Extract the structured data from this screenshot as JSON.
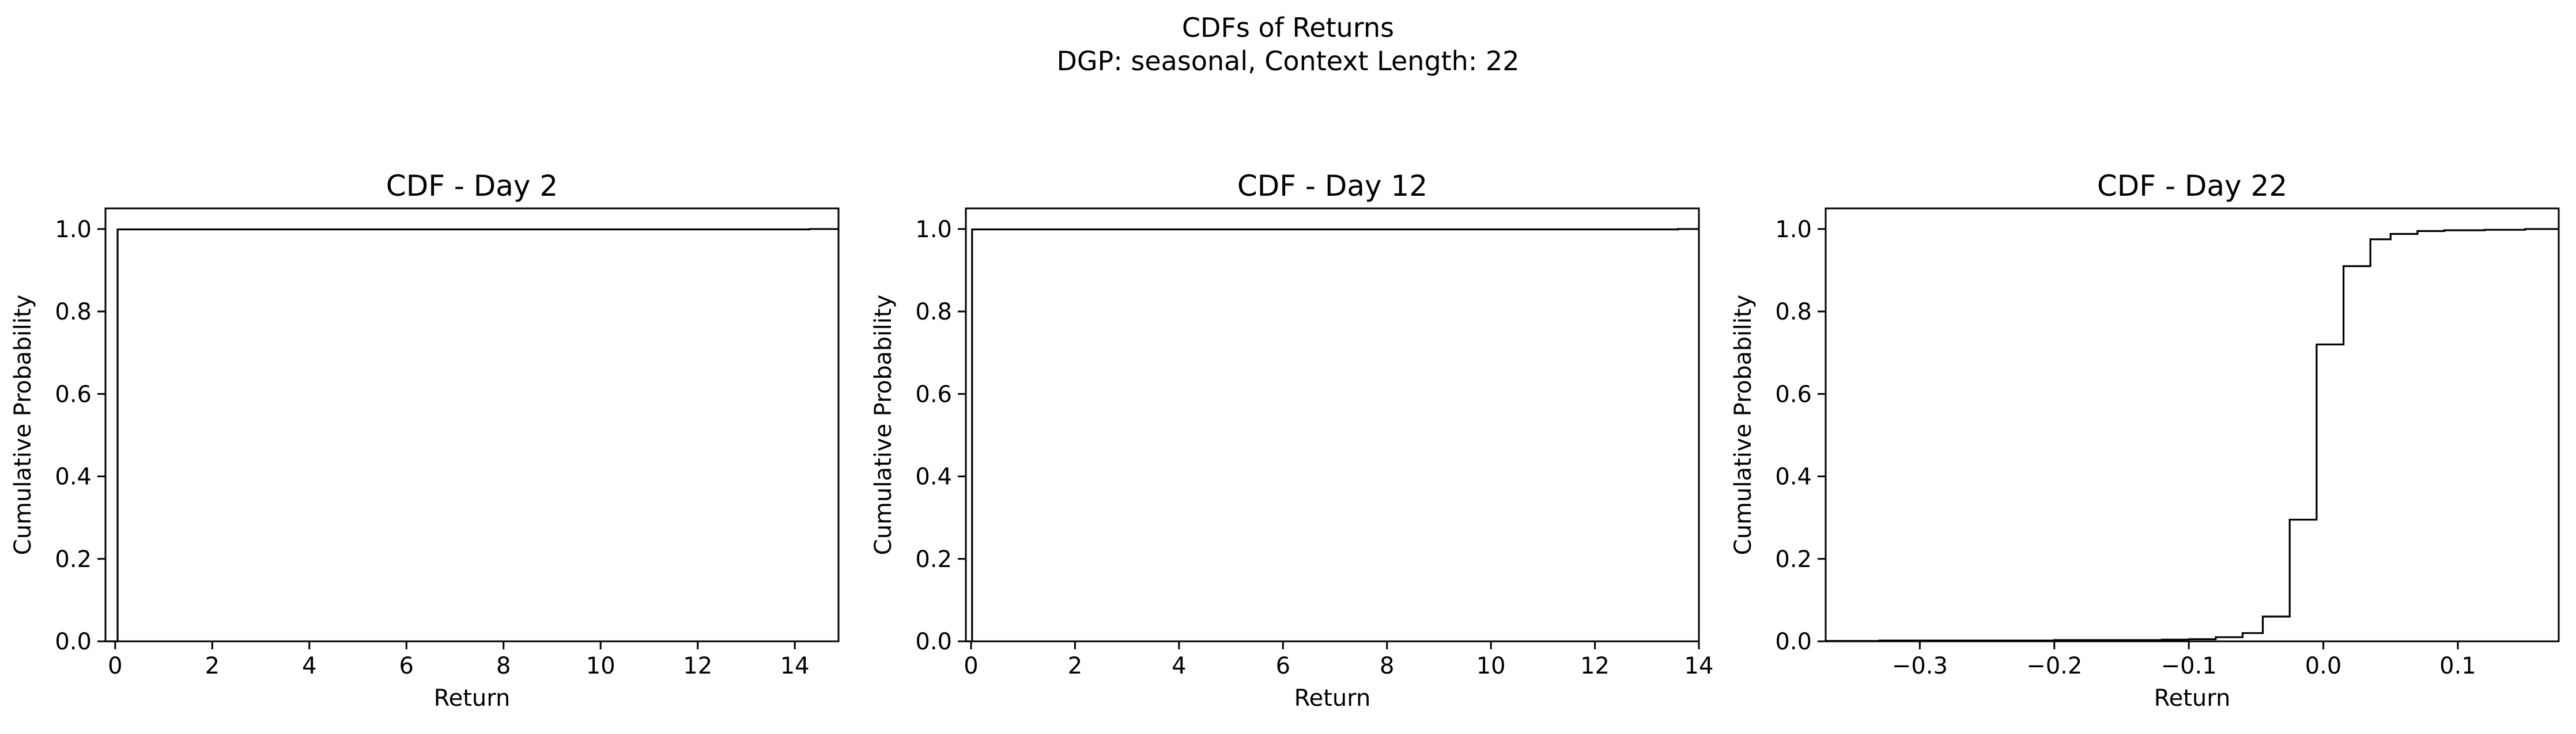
{
  "figure": {
    "title_line1": "CDFs of Returns",
    "title_line2": "DGP: seasonal, Context Length: 22"
  },
  "colors": {
    "line": "#000000",
    "axes": "#000000",
    "background": "#ffffff"
  },
  "chart_data": [
    {
      "type": "line",
      "drawstyle": "steps-post",
      "title": "CDF - Day 2",
      "xlabel": "Return",
      "ylabel": "Cumulative Probability",
      "xlim": [
        -0.2,
        14.9
      ],
      "ylim": [
        0.0,
        1.05
      ],
      "xticks": [
        0,
        2,
        4,
        6,
        8,
        10,
        12,
        14
      ],
      "xtick_labels": [
        "0",
        "2",
        "4",
        "6",
        "8",
        "10",
        "12",
        "14"
      ],
      "yticks": [
        0.0,
        0.2,
        0.4,
        0.6,
        0.8,
        1.0
      ],
      "ytick_labels": [
        "0.0",
        "0.2",
        "0.4",
        "0.6",
        "0.8",
        "1.0"
      ],
      "series": [
        {
          "name": "CDF",
          "x": [
            -0.2,
            0.05,
            14.3,
            14.9
          ],
          "y": [
            0.0,
            0.999,
            1.0,
            1.0
          ]
        }
      ]
    },
    {
      "type": "line",
      "drawstyle": "steps-post",
      "title": "CDF - Day 12",
      "xlabel": "Return",
      "ylabel": "Cumulative Probability",
      "xlim": [
        -0.1,
        14.0
      ],
      "ylim": [
        0.0,
        1.05
      ],
      "xticks": [
        0,
        2,
        4,
        6,
        8,
        10,
        12,
        14
      ],
      "xtick_labels": [
        "0",
        "2",
        "4",
        "6",
        "8",
        "10",
        "12",
        "14"
      ],
      "yticks": [
        0.0,
        0.2,
        0.4,
        0.6,
        0.8,
        1.0
      ],
      "ytick_labels": [
        "0.0",
        "0.2",
        "0.4",
        "0.6",
        "0.8",
        "1.0"
      ],
      "series": [
        {
          "name": "CDF",
          "x": [
            -0.1,
            0.02,
            13.6,
            14.0
          ],
          "y": [
            0.0,
            0.999,
            1.0,
            1.0
          ]
        }
      ]
    },
    {
      "type": "line",
      "drawstyle": "steps-post",
      "title": "CDF - Day 22",
      "xlabel": "Return",
      "ylabel": "Cumulative Probability",
      "xlim": [
        -0.37,
        0.175
      ],
      "ylim": [
        0.0,
        1.05
      ],
      "xticks": [
        -0.3,
        -0.2,
        -0.1,
        0.0,
        0.1
      ],
      "xtick_labels": [
        "−0.3",
        "−0.2",
        "−0.1",
        "0.0",
        "0.1"
      ],
      "yticks": [
        0.0,
        0.2,
        0.4,
        0.6,
        0.8,
        1.0
      ],
      "ytick_labels": [
        "0.0",
        "0.2",
        "0.4",
        "0.6",
        "0.8",
        "1.0"
      ],
      "series": [
        {
          "name": "CDF",
          "x": [
            -0.37,
            -0.33,
            -0.25,
            -0.2,
            -0.12,
            -0.1,
            -0.08,
            -0.06,
            -0.045,
            -0.025,
            -0.005,
            0.015,
            0.035,
            0.05,
            0.07,
            0.09,
            0.12,
            0.15,
            0.175
          ],
          "y": [
            0.001,
            0.002,
            0.002,
            0.003,
            0.004,
            0.005,
            0.01,
            0.02,
            0.06,
            0.295,
            0.72,
            0.91,
            0.975,
            0.988,
            0.995,
            0.997,
            0.998,
            1.0,
            1.0
          ]
        }
      ]
    }
  ]
}
